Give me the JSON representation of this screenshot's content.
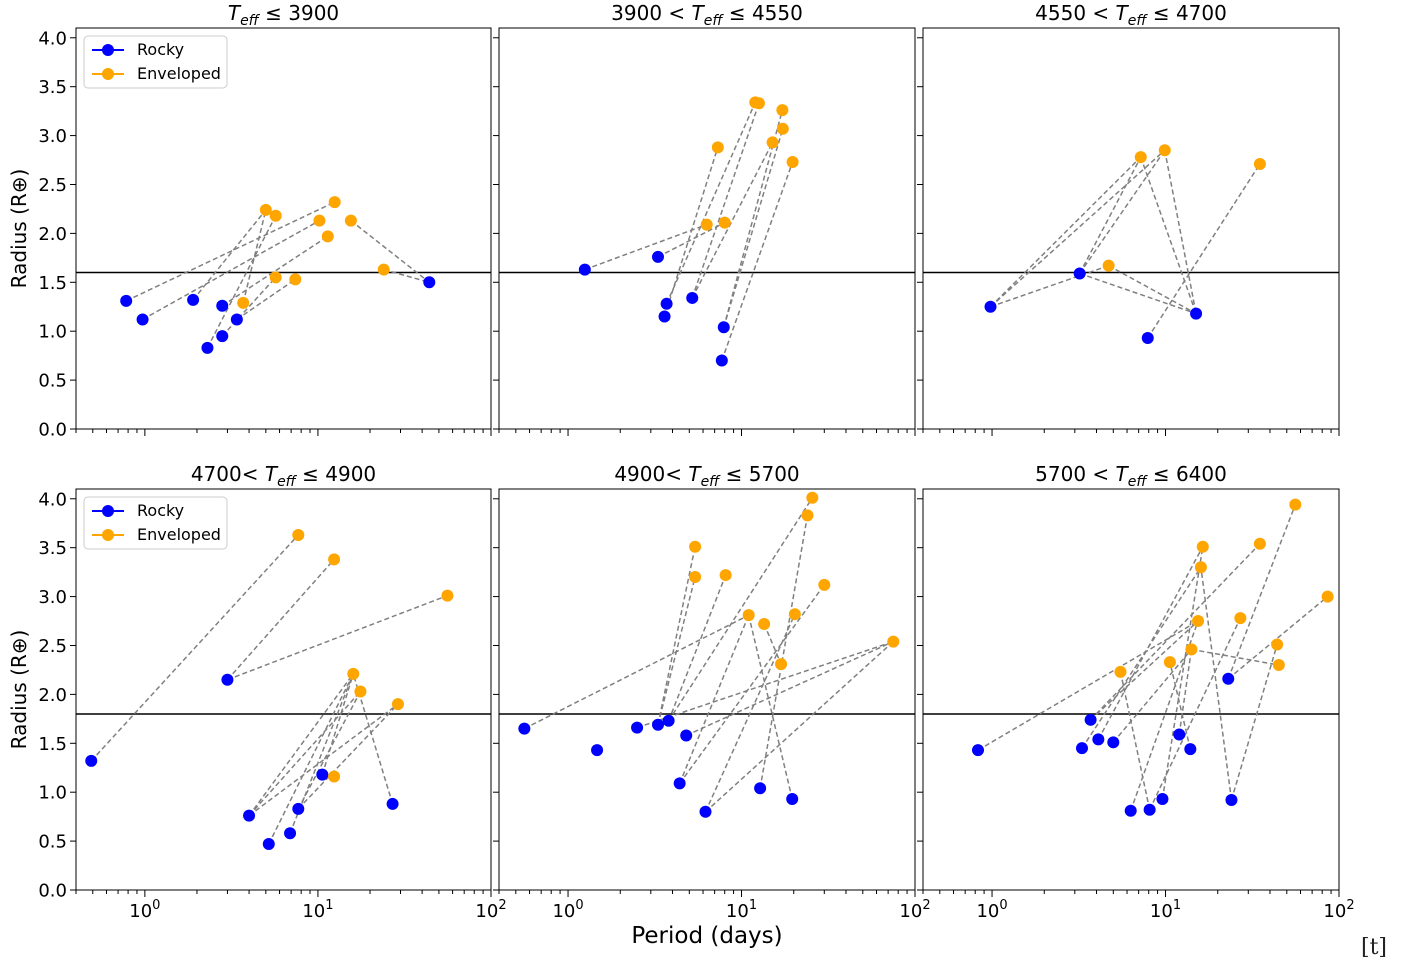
{
  "figure": {
    "xlabel": "Period (days)",
    "ylabel": "Radius (R⊕)",
    "corner_mark": "[t]"
  },
  "colors": {
    "rocky": "#0000ff",
    "enveloped": "#ffa500",
    "link": "#808080",
    "threshold": "#000000"
  },
  "chart_data": [
    {
      "type": "scatter",
      "title": {
        "prefix": "",
        "suffix": "≤  3900"
      },
      "x_scale": "log",
      "xlim": [
        0.4,
        100
      ],
      "ylim": [
        0,
        4.1
      ],
      "x_tick_labels": [
        "10^0",
        "10^1",
        "10^2"
      ],
      "y_ticks": [
        0.0,
        0.5,
        1.0,
        1.5,
        2.0,
        2.5,
        3.0,
        3.5,
        4.0
      ],
      "threshold_radius": 1.6,
      "legend": {
        "placement": "top-left",
        "entries": [
          "Rocky",
          "Enveloped"
        ]
      },
      "rocky": [
        [
          0.78,
          1.31
        ],
        [
          0.97,
          1.12
        ],
        [
          1.9,
          1.32
        ],
        [
          2.3,
          0.83
        ],
        [
          2.8,
          1.26
        ],
        [
          2.8,
          0.95
        ],
        [
          3.4,
          1.12
        ],
        [
          44,
          1.5
        ]
      ],
      "enveloped": [
        [
          3.7,
          1.29
        ],
        [
          5.0,
          2.24
        ],
        [
          5.7,
          2.18
        ],
        [
          5.7,
          1.55
        ],
        [
          7.4,
          1.53
        ],
        [
          10.2,
          2.13
        ],
        [
          11.4,
          1.97
        ],
        [
          12.5,
          2.32
        ],
        [
          15.5,
          2.13
        ],
        [
          24,
          1.63
        ]
      ],
      "links": [
        [
          [
            0.78,
            1.31
          ],
          [
            12.5,
            2.32
          ]
        ],
        [
          [
            0.97,
            1.12
          ],
          [
            10.2,
            2.13
          ]
        ],
        [
          [
            1.9,
            1.32
          ],
          [
            5.0,
            2.24
          ]
        ],
        [
          [
            2.3,
            0.83
          ],
          [
            5.7,
            2.18
          ]
        ],
        [
          [
            2.8,
            1.26
          ],
          [
            11.4,
            1.97
          ]
        ],
        [
          [
            2.8,
            0.95
          ],
          [
            5.7,
            1.55
          ]
        ],
        [
          [
            3.4,
            1.12
          ],
          [
            7.4,
            1.53
          ]
        ],
        [
          [
            3.7,
            1.29
          ],
          [
            5.0,
            2.24
          ]
        ],
        [
          [
            15.5,
            2.13
          ],
          [
            44,
            1.5
          ]
        ],
        [
          [
            24,
            1.63
          ],
          [
            44,
            1.5
          ]
        ]
      ]
    },
    {
      "type": "scatter",
      "title": {
        "prefix": "3900 <",
        "suffix": "≤  4550"
      },
      "x_scale": "log",
      "xlim": [
        0.4,
        100
      ],
      "ylim": [
        0,
        4.1
      ],
      "x_tick_labels": [
        "10^0",
        "10^1",
        "10^2"
      ],
      "y_ticks": [
        0.0,
        0.5,
        1.0,
        1.5,
        2.0,
        2.5,
        3.0,
        3.5,
        4.0
      ],
      "threshold_radius": 1.6,
      "legend": null,
      "rocky": [
        [
          1.25,
          1.63
        ],
        [
          3.3,
          1.76
        ],
        [
          3.6,
          1.15
        ],
        [
          3.7,
          1.28
        ],
        [
          5.2,
          1.34
        ],
        [
          7.9,
          1.04
        ],
        [
          7.7,
          0.7
        ]
      ],
      "enveloped": [
        [
          6.3,
          2.09
        ],
        [
          7.3,
          2.88
        ],
        [
          8.0,
          2.11
        ],
        [
          12.0,
          3.34
        ],
        [
          12.6,
          3.33
        ],
        [
          15.1,
          2.93
        ],
        [
          17.2,
          3.26
        ],
        [
          17.3,
          3.07
        ],
        [
          19.7,
          2.73
        ]
      ],
      "links": [
        [
          [
            1.25,
            1.63
          ],
          [
            6.3,
            2.09
          ]
        ],
        [
          [
            3.3,
            1.76
          ],
          [
            8.0,
            2.11
          ]
        ],
        [
          [
            3.6,
            1.15
          ],
          [
            7.3,
            2.88
          ]
        ],
        [
          [
            3.7,
            1.28
          ],
          [
            12.0,
            3.34
          ]
        ],
        [
          [
            5.2,
            1.34
          ],
          [
            12.6,
            3.33
          ]
        ],
        [
          [
            5.2,
            1.34
          ],
          [
            15.1,
            2.93
          ]
        ],
        [
          [
            7.9,
            1.04
          ],
          [
            17.2,
            3.26
          ]
        ],
        [
          [
            7.9,
            1.04
          ],
          [
            17.3,
            3.07
          ]
        ],
        [
          [
            7.7,
            0.7
          ],
          [
            19.7,
            2.73
          ]
        ]
      ]
    },
    {
      "type": "scatter",
      "title": {
        "prefix": "4550 <",
        "suffix": "≤  4700"
      },
      "x_scale": "log",
      "xlim": [
        0.4,
        100
      ],
      "ylim": [
        0,
        4.1
      ],
      "x_tick_labels": [
        "10^0",
        "10^1",
        "10^2"
      ],
      "y_ticks": [
        0.0,
        0.5,
        1.0,
        1.5,
        2.0,
        2.5,
        3.0,
        3.5,
        4.0
      ],
      "threshold_radius": 1.6,
      "legend": null,
      "rocky": [
        [
          0.98,
          1.25
        ],
        [
          3.2,
          1.59
        ],
        [
          7.9,
          0.93
        ],
        [
          15.0,
          1.18
        ]
      ],
      "enveloped": [
        [
          4.7,
          1.67
        ],
        [
          7.2,
          2.78
        ],
        [
          9.9,
          2.85
        ],
        [
          35,
          2.71
        ]
      ],
      "links": [
        [
          [
            0.98,
            1.25
          ],
          [
            7.2,
            2.78
          ]
        ],
        [
          [
            0.98,
            1.25
          ],
          [
            9.9,
            2.85
          ]
        ],
        [
          [
            0.98,
            1.25
          ],
          [
            4.7,
            1.67
          ]
        ],
        [
          [
            3.2,
            1.59
          ],
          [
            7.2,
            2.78
          ]
        ],
        [
          [
            3.2,
            1.59
          ],
          [
            9.9,
            2.85
          ]
        ],
        [
          [
            3.2,
            1.59
          ],
          [
            15.0,
            1.18
          ]
        ],
        [
          [
            7.2,
            2.78
          ],
          [
            15.0,
            1.18
          ]
        ],
        [
          [
            9.9,
            2.85
          ],
          [
            15.0,
            1.18
          ]
        ],
        [
          [
            4.7,
            1.67
          ],
          [
            15.0,
            1.18
          ]
        ],
        [
          [
            7.9,
            0.93
          ],
          [
            35,
            2.71
          ]
        ]
      ]
    },
    {
      "type": "scatter",
      "title": {
        "prefix": "4700<",
        "suffix": "≤  4900"
      },
      "x_scale": "log",
      "xlim": [
        0.4,
        100
      ],
      "ylim": [
        0,
        4.1
      ],
      "x_tick_labels": [
        "10^0",
        "10^1",
        "10^2"
      ],
      "y_ticks": [
        0.0,
        0.5,
        1.0,
        1.5,
        2.0,
        2.5,
        3.0,
        3.5,
        4.0
      ],
      "threshold_radius": 1.8,
      "legend": {
        "placement": "top-left",
        "entries": [
          "Rocky",
          "Enveloped"
        ]
      },
      "rocky": [
        [
          0.49,
          1.32
        ],
        [
          3.0,
          2.15
        ],
        [
          4.0,
          0.76
        ],
        [
          5.2,
          0.47
        ],
        [
          6.9,
          0.58
        ],
        [
          7.7,
          0.83
        ],
        [
          10.6,
          1.18
        ],
        [
          27,
          0.88
        ]
      ],
      "enveloped": [
        [
          7.7,
          3.63
        ],
        [
          12.4,
          3.38
        ],
        [
          12.4,
          1.16
        ],
        [
          16.0,
          2.21
        ],
        [
          17.6,
          2.03
        ],
        [
          29,
          1.9
        ],
        [
          56,
          3.01
        ]
      ],
      "links": [
        [
          [
            0.49,
            1.32
          ],
          [
            7.7,
            3.63
          ]
        ],
        [
          [
            3.0,
            2.15
          ],
          [
            12.4,
            3.38
          ]
        ],
        [
          [
            3.0,
            2.15
          ],
          [
            56,
            3.01
          ]
        ],
        [
          [
            4.0,
            0.76
          ],
          [
            16.0,
            2.21
          ]
        ],
        [
          [
            4.0,
            0.76
          ],
          [
            17.6,
            2.03
          ]
        ],
        [
          [
            4.0,
            0.76
          ],
          [
            29,
            1.9
          ]
        ],
        [
          [
            5.2,
            0.47
          ],
          [
            16.0,
            2.21
          ]
        ],
        [
          [
            6.9,
            0.58
          ],
          [
            16.0,
            2.21
          ]
        ],
        [
          [
            7.7,
            0.83
          ],
          [
            17.6,
            2.03
          ]
        ],
        [
          [
            7.7,
            0.83
          ],
          [
            29,
            1.9
          ]
        ],
        [
          [
            10.6,
            1.18
          ],
          [
            16.0,
            2.21
          ]
        ],
        [
          [
            10.6,
            1.18
          ],
          [
            12.4,
            1.16
          ]
        ],
        [
          [
            27,
            0.88
          ],
          [
            16.0,
            2.21
          ]
        ]
      ]
    },
    {
      "type": "scatter",
      "title": {
        "prefix": "4900<",
        "suffix": "≤  5700"
      },
      "x_scale": "log",
      "xlim": [
        0.4,
        100
      ],
      "ylim": [
        0,
        4.1
      ],
      "x_tick_labels": [
        "10^0",
        "10^1",
        "10^2"
      ],
      "y_ticks": [
        0.0,
        0.5,
        1.0,
        1.5,
        2.0,
        2.5,
        3.0,
        3.5,
        4.0
      ],
      "threshold_radius": 1.8,
      "legend": null,
      "rocky": [
        [
          0.56,
          1.65
        ],
        [
          1.47,
          1.43
        ],
        [
          2.5,
          1.66
        ],
        [
          3.3,
          1.69
        ],
        [
          3.8,
          1.73
        ],
        [
          4.4,
          1.09
        ],
        [
          4.8,
          1.58
        ],
        [
          6.2,
          0.8
        ],
        [
          12.8,
          1.04
        ],
        [
          19.6,
          0.93
        ]
      ],
      "enveloped": [
        [
          5.4,
          3.51
        ],
        [
          5.4,
          3.2
        ],
        [
          8.1,
          3.22
        ],
        [
          11.0,
          2.81
        ],
        [
          13.5,
          2.72
        ],
        [
          16.9,
          2.31
        ],
        [
          20.3,
          2.82
        ],
        [
          24,
          3.83
        ],
        [
          25.6,
          4.01
        ],
        [
          30,
          3.12
        ],
        [
          75,
          2.54
        ]
      ],
      "links": [
        [
          [
            0.56,
            1.65
          ],
          [
            11.0,
            2.81
          ]
        ],
        [
          [
            2.5,
            1.66
          ],
          [
            75,
            2.54
          ]
        ],
        [
          [
            3.3,
            1.69
          ],
          [
            5.4,
            3.51
          ]
        ],
        [
          [
            3.3,
            1.69
          ],
          [
            5.4,
            3.2
          ]
        ],
        [
          [
            3.8,
            1.73
          ],
          [
            8.1,
            3.22
          ]
        ],
        [
          [
            3.8,
            1.73
          ],
          [
            25.6,
            4.01
          ]
        ],
        [
          [
            4.4,
            1.09
          ],
          [
            11.0,
            2.81
          ]
        ],
        [
          [
            4.4,
            1.09
          ],
          [
            30,
            3.12
          ]
        ],
        [
          [
            4.8,
            1.58
          ],
          [
            75,
            2.54
          ]
        ],
        [
          [
            6.2,
            0.8
          ],
          [
            20.3,
            2.82
          ]
        ],
        [
          [
            6.2,
            0.8
          ],
          [
            75,
            2.54
          ]
        ],
        [
          [
            12.8,
            1.04
          ],
          [
            24,
            3.83
          ]
        ],
        [
          [
            19.6,
            0.93
          ],
          [
            11.0,
            2.81
          ]
        ],
        [
          [
            13.5,
            2.72
          ],
          [
            16.9,
            2.31
          ]
        ]
      ]
    },
    {
      "type": "scatter",
      "title": {
        "prefix": "5700 <",
        "suffix": "≤  6400"
      },
      "x_scale": "log",
      "xlim": [
        0.4,
        100
      ],
      "ylim": [
        0,
        4.1
      ],
      "x_tick_labels": [
        "10^0",
        "10^1",
        "10^2"
      ],
      "y_ticks": [
        0.0,
        0.5,
        1.0,
        1.5,
        2.0,
        2.5,
        3.0,
        3.5,
        4.0
      ],
      "threshold_radius": 1.8,
      "legend": null,
      "rocky": [
        [
          0.83,
          1.43
        ],
        [
          3.3,
          1.45
        ],
        [
          3.7,
          1.74
        ],
        [
          4.1,
          1.54
        ],
        [
          5.0,
          1.51
        ],
        [
          6.3,
          0.81
        ],
        [
          8.1,
          0.82
        ],
        [
          9.6,
          0.93
        ],
        [
          12.0,
          1.59
        ],
        [
          13.9,
          1.44
        ],
        [
          23,
          2.16
        ],
        [
          24,
          0.92
        ]
      ],
      "enveloped": [
        [
          5.5,
          2.23
        ],
        [
          10.6,
          2.33
        ],
        [
          14.1,
          2.46
        ],
        [
          15.4,
          2.75
        ],
        [
          16.0,
          3.3
        ],
        [
          16.4,
          3.51
        ],
        [
          27,
          2.78
        ],
        [
          35,
          3.54
        ],
        [
          44,
          2.51
        ],
        [
          45,
          2.3
        ],
        [
          56,
          3.94
        ],
        [
          86,
          3.0
        ]
      ],
      "links": [
        [
          [
            0.83,
            1.43
          ],
          [
            15.4,
            2.75
          ]
        ],
        [
          [
            3.3,
            1.45
          ],
          [
            16.0,
            3.3
          ]
        ],
        [
          [
            3.7,
            1.74
          ],
          [
            35,
            3.54
          ]
        ],
        [
          [
            3.7,
            1.74
          ],
          [
            15.4,
            2.75
          ]
        ],
        [
          [
            4.1,
            1.54
          ],
          [
            16.4,
            3.51
          ]
        ],
        [
          [
            5.0,
            1.51
          ],
          [
            14.1,
            2.46
          ]
        ],
        [
          [
            6.3,
            0.81
          ],
          [
            15.4,
            2.75
          ]
        ],
        [
          [
            8.1,
            0.82
          ],
          [
            5.5,
            2.23
          ]
        ],
        [
          [
            8.1,
            0.82
          ],
          [
            27,
            2.78
          ]
        ],
        [
          [
            9.6,
            0.93
          ],
          [
            16.4,
            3.51
          ]
        ],
        [
          [
            12.0,
            1.59
          ],
          [
            14.1,
            2.46
          ]
        ],
        [
          [
            13.9,
            1.44
          ],
          [
            10.6,
            2.33
          ]
        ],
        [
          [
            23,
            2.16
          ],
          [
            56,
            3.94
          ]
        ],
        [
          [
            23,
            2.16
          ],
          [
            86,
            3.0
          ]
        ],
        [
          [
            24,
            0.92
          ],
          [
            44,
            2.51
          ]
        ],
        [
          [
            24,
            0.92
          ],
          [
            16.0,
            3.3
          ]
        ],
        [
          [
            14.1,
            2.46
          ],
          [
            45,
            2.3
          ]
        ]
      ]
    }
  ]
}
